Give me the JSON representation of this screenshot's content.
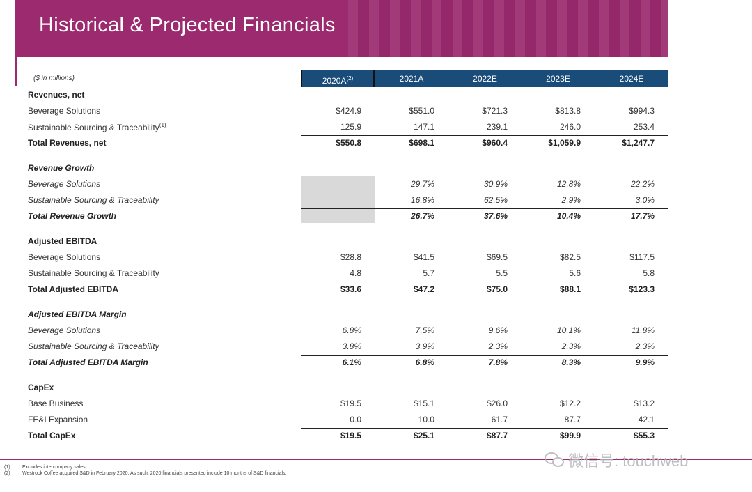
{
  "title": "Historical & Projected Financials",
  "units": "($ in millions)",
  "columns": [
    {
      "label": "2020A",
      "note": "(2)"
    },
    {
      "label": "2021A",
      "note": ""
    },
    {
      "label": "2022E",
      "note": ""
    },
    {
      "label": "2023E",
      "note": ""
    },
    {
      "label": "2024E",
      "note": ""
    }
  ],
  "sections": [
    {
      "title": "Revenues, net",
      "style": "",
      "rows": [
        {
          "label": "Beverage Solutions",
          "note": "",
          "values": [
            "$424.9",
            "$551.0",
            "$721.3",
            "$813.8",
            "$994.3"
          ]
        },
        {
          "label": "Sustainable Sourcing & Traceability",
          "note": "(1)",
          "values": [
            "125.9",
            "147.1",
            "239.1",
            "246.0",
            "253.4"
          ]
        }
      ],
      "total": {
        "label": "Total Revenues, net",
        "values": [
          "$550.8",
          "$698.1",
          "$960.4",
          "$1,059.9",
          "$1,247.7"
        ]
      }
    },
    {
      "title": "Revenue Growth",
      "style": "italic",
      "rows": [
        {
          "label": "Beverage Solutions",
          "note": "",
          "values": [
            "",
            "29.7%",
            "30.9%",
            "12.8%",
            "22.2%"
          ]
        },
        {
          "label": "Sustainable Sourcing & Traceability",
          "note": "",
          "values": [
            "",
            "16.8%",
            "62.5%",
            "2.9%",
            "3.0%"
          ]
        }
      ],
      "total": {
        "label": "Total Revenue Growth",
        "values": [
          "",
          "26.7%",
          "37.6%",
          "10.4%",
          "17.7%"
        ]
      }
    },
    {
      "title": "Adjusted EBITDA",
      "style": "",
      "rows": [
        {
          "label": "Beverage Solutions",
          "note": "",
          "values": [
            "$28.8",
            "$41.5",
            "$69.5",
            "$82.5",
            "$117.5"
          ]
        },
        {
          "label": "Sustainable Sourcing & Traceability",
          "note": "",
          "values": [
            "4.8",
            "5.7",
            "5.5",
            "5.6",
            "5.8"
          ]
        }
      ],
      "total": {
        "label": "Total Adjusted EBITDA",
        "values": [
          "$33.6",
          "$47.2",
          "$75.0",
          "$88.1",
          "$123.3"
        ]
      }
    },
    {
      "title": "Adjusted EBITDA Margin",
      "style": "italic",
      "rows": [
        {
          "label": "Beverage Solutions",
          "note": "",
          "values": [
            "6.8%",
            "7.5%",
            "9.6%",
            "10.1%",
            "11.8%"
          ]
        },
        {
          "label": "Sustainable Sourcing & Traceability",
          "note": "",
          "values": [
            "3.8%",
            "3.9%",
            "2.3%",
            "2.3%",
            "2.3%"
          ]
        }
      ],
      "total": {
        "label": "Total Adjusted EBITDA Margin",
        "values": [
          "6.1%",
          "6.8%",
          "7.8%",
          "8.3%",
          "9.9%"
        ]
      }
    },
    {
      "title": "CapEx",
      "style": "",
      "rows": [
        {
          "label": "Base Business",
          "note": "",
          "values": [
            "$19.5",
            "$15.1",
            "$26.0",
            "$12.2",
            "$13.2"
          ]
        },
        {
          "label": "FE&I Expansion",
          "note": "",
          "values": [
            "0.0",
            "10.0",
            "61.7",
            "87.7",
            "42.1"
          ]
        }
      ],
      "total": {
        "label": "Total CapEx",
        "values": [
          "$19.5",
          "$25.1",
          "$87.7",
          "$99.9",
          "$55.3"
        ]
      }
    }
  ],
  "footnotes": [
    {
      "num": "(1)",
      "text": "Excludes intercompany sales"
    },
    {
      "num": "(2)",
      "text": "Westrock Coffee acquired S&D in February 2020. As such, 2020 financials presented include 10 months of S&D financials."
    }
  ],
  "watermark": "微信号: touchweb",
  "colors": {
    "banner": "#9b2a6f",
    "header": "#1a4c7a",
    "grey": "#d9d9d9"
  }
}
